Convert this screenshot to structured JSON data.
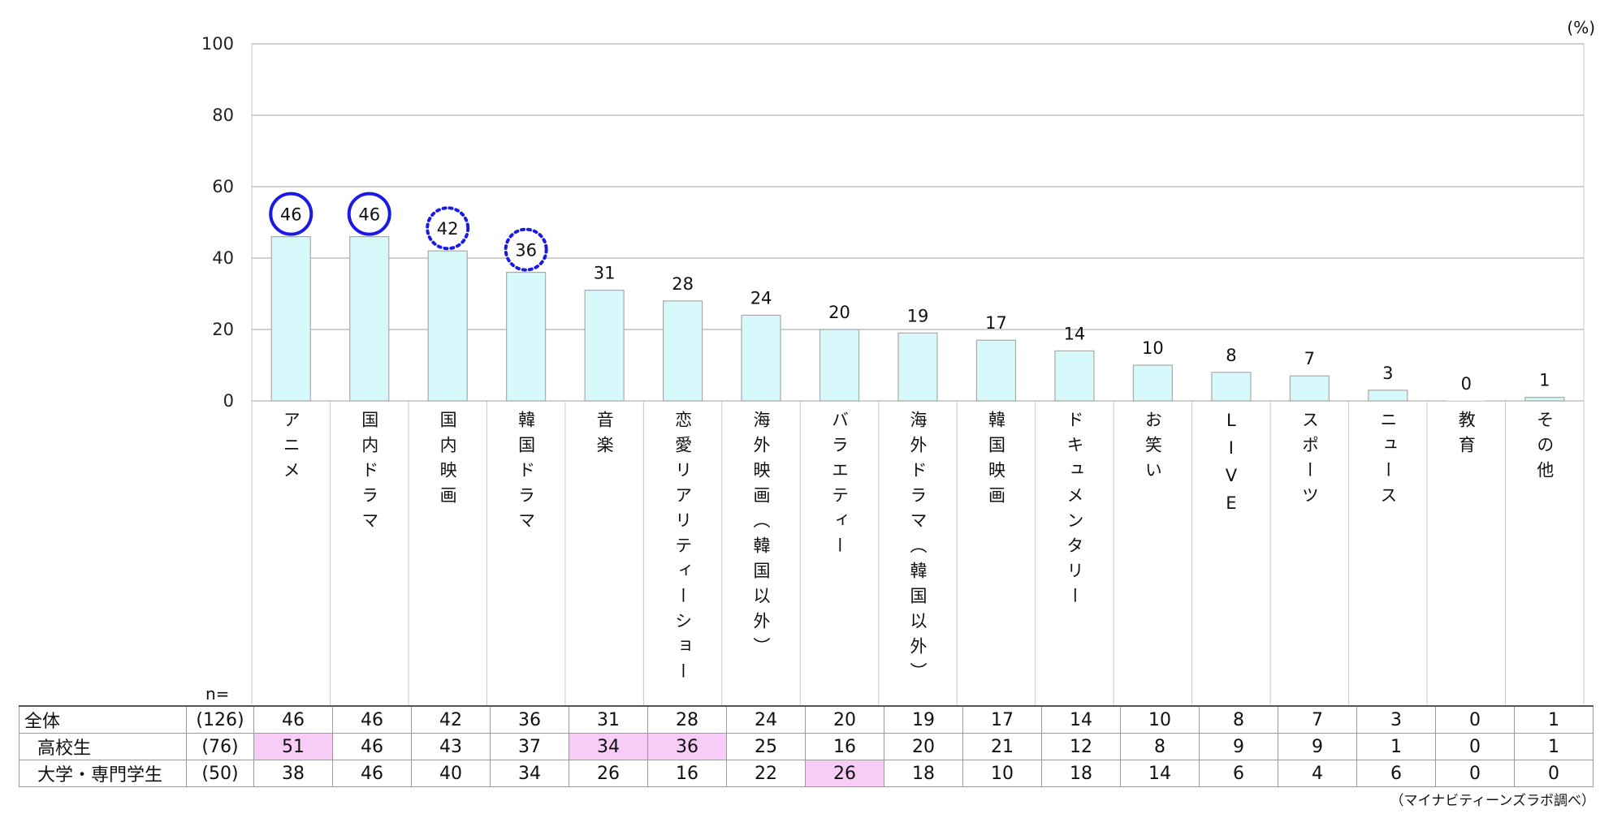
{
  "unit": "(%)",
  "source": "（マイナビティーンズラボ調べ）",
  "n_label": "n=",
  "chart_data": {
    "type": "bar",
    "ylim": [
      0,
      100
    ],
    "yticks": [
      "100",
      "80",
      "60",
      "40",
      "20",
      "0"
    ],
    "grid": true,
    "categories": [
      "アニメ",
      "国内ドラマ",
      "国内映画",
      "韓国ドラマ",
      "音楽",
      "恋愛リアリティーショー",
      "海外映画（韓国以外）",
      "バラエティー",
      "海外ドラマ（韓国以外）",
      "韓国映画",
      "ドキュメンタリー",
      "お笑い",
      "LIVE",
      "スポーツ",
      "ニュース",
      "教育",
      "その他"
    ],
    "values": [
      46,
      46,
      42,
      36,
      31,
      28,
      24,
      20,
      19,
      17,
      14,
      10,
      8,
      7,
      3,
      0,
      1
    ],
    "value_labels": [
      "46",
      "46",
      "42",
      "36",
      "31",
      "28",
      "24",
      "20",
      "19",
      "17",
      "14",
      "10",
      "8",
      "7",
      "3",
      "0",
      "1"
    ],
    "circled": [
      "solid",
      "solid",
      "dotted",
      "dotted",
      "",
      "",
      "",
      "",
      "",
      "",
      "",
      "",
      "",
      "",
      "",
      "",
      ""
    ],
    "bar_color": "#d8f9fb",
    "bar_edge": "#a9a9a9",
    "circle_color": "#1a1ae6"
  },
  "table": {
    "rows": [
      {
        "label": "全体",
        "n": "(126)",
        "values": [
          "46",
          "46",
          "42",
          "36",
          "31",
          "28",
          "24",
          "20",
          "19",
          "17",
          "14",
          "10",
          "8",
          "7",
          "3",
          "0",
          "1"
        ],
        "highlight": []
      },
      {
        "label": "高校生",
        "n": "(76)",
        "values": [
          "51",
          "46",
          "43",
          "37",
          "34",
          "36",
          "25",
          "16",
          "20",
          "21",
          "12",
          "8",
          "9",
          "9",
          "1",
          "0",
          "1"
        ],
        "highlight": [
          0,
          4,
          5
        ]
      },
      {
        "label": "大学・専門学生",
        "n": "(50)",
        "values": [
          "38",
          "46",
          "40",
          "34",
          "26",
          "16",
          "22",
          "26",
          "18",
          "10",
          "18",
          "14",
          "6",
          "4",
          "6",
          "0",
          "0"
        ],
        "highlight": [
          7
        ]
      }
    ],
    "highlight_color": "#f7cdf7"
  }
}
